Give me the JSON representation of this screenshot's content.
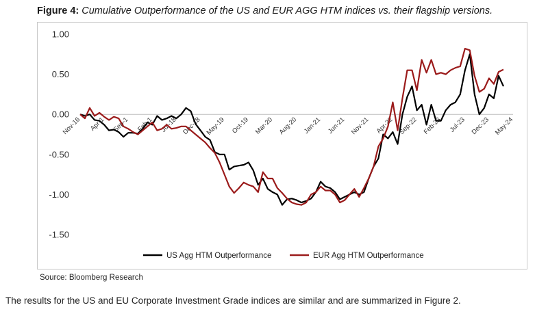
{
  "figure": {
    "label": "Figure 4:",
    "caption": "Cumulative Outperformance of the US and EUR AGG HTM indices vs. their flagship versions."
  },
  "source": "Source: Bloomberg Research",
  "body_text": "The results for the US and EU Corporate Investment Grade indices are similar and are summarized in Figure 2.",
  "chart_data": {
    "type": "line",
    "title": "",
    "xlabel": "",
    "ylabel": "",
    "ylim": [
      -1.5,
      1.0
    ],
    "yticks": [
      "1.00",
      "0.50",
      "0.00",
      "-0.50",
      "-1.00",
      "-1.50"
    ],
    "ytick_values": [
      1.0,
      0.5,
      0.0,
      -0.5,
      -1.0,
      -1.5
    ],
    "x_tick_labels": [
      "Nov-16",
      "Apr-17",
      "Sep-17",
      "Feb-18",
      "Jul-18",
      "Dec-18",
      "May-19",
      "Oct-19",
      "Mar-20",
      "Aug-20",
      "Jan-21",
      "Jun-21",
      "Nov-21",
      "Apr-22",
      "Sep-22",
      "Feb-23",
      "Jul-23",
      "Dec-23",
      "May-24"
    ],
    "x_tick_display": [
      "Nov-16",
      "Apr-1",
      "Sep-1",
      "Feb-1",
      "Jul-18",
      "Dec-18",
      "May-19",
      "Oct-19",
      "Mar-20",
      "Aug-20",
      "Jan-21",
      "Jun-21",
      "Nov-21",
      "Apr-22",
      "Sep-22",
      "Feb-23",
      "Jul-23",
      "Dec-23",
      "May-24"
    ],
    "x_tick_month_index": [
      0,
      5,
      10,
      15,
      20,
      25,
      30,
      35,
      40,
      45,
      50,
      55,
      60,
      65,
      70,
      75,
      80,
      85,
      90
    ],
    "x_range_months": [
      0,
      90
    ],
    "grid": false,
    "legend_position": "bottom",
    "series": [
      {
        "name": "US Agg HTM Outperformance",
        "color": "#000000",
        "points": [
          [
            0,
            0
          ],
          [
            1,
            -0.02
          ],
          [
            2,
            0
          ],
          [
            3,
            -0.07
          ],
          [
            4,
            -0.08
          ],
          [
            5,
            -0.13
          ],
          [
            6,
            -0.2
          ],
          [
            7,
            -0.19
          ],
          [
            8,
            -0.22
          ],
          [
            9,
            -0.28
          ],
          [
            10,
            -0.23
          ],
          [
            11,
            -0.23
          ],
          [
            12,
            -0.24
          ],
          [
            13,
            -0.18
          ],
          [
            14,
            -0.1
          ],
          [
            15,
            -0.13
          ],
          [
            16,
            -0.02
          ],
          [
            17,
            -0.07
          ],
          [
            18,
            -0.05
          ],
          [
            19,
            -0.02
          ],
          [
            20,
            -0.05
          ],
          [
            21,
            0.0
          ],
          [
            22,
            0.08
          ],
          [
            23,
            0.04
          ],
          [
            24,
            -0.12
          ],
          [
            25,
            -0.2
          ],
          [
            26,
            -0.28
          ],
          [
            27,
            -0.32
          ],
          [
            28,
            -0.47
          ],
          [
            29,
            -0.5
          ],
          [
            30,
            -0.5
          ],
          [
            31,
            -0.69
          ],
          [
            32,
            -0.65
          ],
          [
            33,
            -0.64
          ],
          [
            34,
            -0.63
          ],
          [
            35,
            -0.6
          ],
          [
            36,
            -0.7
          ],
          [
            37,
            -0.88
          ],
          [
            38,
            -0.8
          ],
          [
            39,
            -0.93
          ],
          [
            40,
            -0.97
          ],
          [
            41,
            -1.0
          ],
          [
            42,
            -1.13
          ],
          [
            43,
            -1.06
          ],
          [
            44,
            -1.05
          ],
          [
            45,
            -1.07
          ],
          [
            46,
            -1.1
          ],
          [
            47,
            -1.08
          ],
          [
            48,
            -1.05
          ],
          [
            49,
            -0.97
          ],
          [
            50,
            -0.84
          ],
          [
            51,
            -0.9
          ],
          [
            52,
            -0.92
          ],
          [
            53,
            -0.97
          ],
          [
            54,
            -1.06
          ],
          [
            55,
            -1.03
          ],
          [
            56,
            -1.0
          ],
          [
            57,
            -0.97
          ],
          [
            58,
            -1.0
          ],
          [
            59,
            -0.97
          ],
          [
            60,
            -0.8
          ],
          [
            61,
            -0.65
          ],
          [
            62,
            -0.55
          ],
          [
            63,
            -0.25
          ],
          [
            64,
            -0.3
          ],
          [
            65,
            -0.22
          ],
          [
            66,
            -0.37
          ],
          [
            67,
            0.0
          ],
          [
            68,
            0.22
          ],
          [
            69,
            0.35
          ],
          [
            70,
            0.05
          ],
          [
            71,
            0.12
          ],
          [
            72,
            -0.13
          ],
          [
            73,
            0.12
          ],
          [
            74,
            -0.08
          ],
          [
            75,
            -0.08
          ],
          [
            76,
            0.05
          ],
          [
            77,
            0.12
          ],
          [
            78,
            0.15
          ],
          [
            79,
            0.25
          ],
          [
            80,
            0.55
          ],
          [
            81,
            0.75
          ],
          [
            82,
            0.25
          ],
          [
            83,
            0.0
          ],
          [
            84,
            0.08
          ],
          [
            85,
            0.25
          ],
          [
            86,
            0.2
          ],
          [
            87,
            0.48
          ],
          [
            88,
            0.35
          ]
        ]
      },
      {
        "name": "EUR Agg HTM Outperformance",
        "color": "#9b1b1b",
        "points": [
          [
            0,
            0
          ],
          [
            1,
            -0.05
          ],
          [
            2,
            0.08
          ],
          [
            3,
            -0.02
          ],
          [
            4,
            0.02
          ],
          [
            5,
            -0.03
          ],
          [
            6,
            -0.07
          ],
          [
            7,
            -0.03
          ],
          [
            8,
            -0.05
          ],
          [
            9,
            -0.15
          ],
          [
            10,
            -0.18
          ],
          [
            11,
            -0.22
          ],
          [
            12,
            -0.25
          ],
          [
            13,
            -0.2
          ],
          [
            14,
            -0.15
          ],
          [
            15,
            -0.1
          ],
          [
            16,
            -0.2
          ],
          [
            17,
            -0.18
          ],
          [
            18,
            -0.13
          ],
          [
            19,
            -0.18
          ],
          [
            20,
            -0.17
          ],
          [
            21,
            -0.15
          ],
          [
            22,
            -0.15
          ],
          [
            23,
            -0.2
          ],
          [
            24,
            -0.25
          ],
          [
            25,
            -0.3
          ],
          [
            26,
            -0.35
          ],
          [
            27,
            -0.42
          ],
          [
            28,
            -0.48
          ],
          [
            29,
            -0.6
          ],
          [
            30,
            -0.75
          ],
          [
            31,
            -0.9
          ],
          [
            32,
            -0.98
          ],
          [
            33,
            -0.92
          ],
          [
            34,
            -0.85
          ],
          [
            35,
            -0.88
          ],
          [
            36,
            -0.9
          ],
          [
            37,
            -0.97
          ],
          [
            38,
            -0.72
          ],
          [
            39,
            -0.8
          ],
          [
            40,
            -0.8
          ],
          [
            41,
            -0.92
          ],
          [
            42,
            -0.98
          ],
          [
            43,
            -1.05
          ],
          [
            44,
            -1.1
          ],
          [
            45,
            -1.12
          ],
          [
            46,
            -1.13
          ],
          [
            47,
            -1.1
          ],
          [
            48,
            -1.0
          ],
          [
            49,
            -0.97
          ],
          [
            50,
            -0.9
          ],
          [
            51,
            -0.95
          ],
          [
            52,
            -0.95
          ],
          [
            53,
            -1.0
          ],
          [
            54,
            -1.1
          ],
          [
            55,
            -1.07
          ],
          [
            56,
            -1.0
          ],
          [
            57,
            -0.93
          ],
          [
            58,
            -1.03
          ],
          [
            59,
            -0.92
          ],
          [
            60,
            -0.8
          ],
          [
            61,
            -0.65
          ],
          [
            62,
            -0.4
          ],
          [
            63,
            -0.3
          ],
          [
            64,
            -0.15
          ],
          [
            65,
            0.15
          ],
          [
            66,
            -0.2
          ],
          [
            67,
            0.2
          ],
          [
            68,
            0.55
          ],
          [
            69,
            0.55
          ],
          [
            70,
            0.3
          ],
          [
            71,
            0.68
          ],
          [
            72,
            0.52
          ],
          [
            73,
            0.68
          ],
          [
            74,
            0.5
          ],
          [
            75,
            0.52
          ],
          [
            76,
            0.5
          ],
          [
            77,
            0.55
          ],
          [
            78,
            0.58
          ],
          [
            79,
            0.6
          ],
          [
            80,
            0.82
          ],
          [
            81,
            0.8
          ],
          [
            82,
            0.48
          ],
          [
            83,
            0.28
          ],
          [
            84,
            0.32
          ],
          [
            85,
            0.45
          ],
          [
            86,
            0.38
          ],
          [
            87,
            0.53
          ],
          [
            88,
            0.56
          ]
        ]
      }
    ]
  }
}
